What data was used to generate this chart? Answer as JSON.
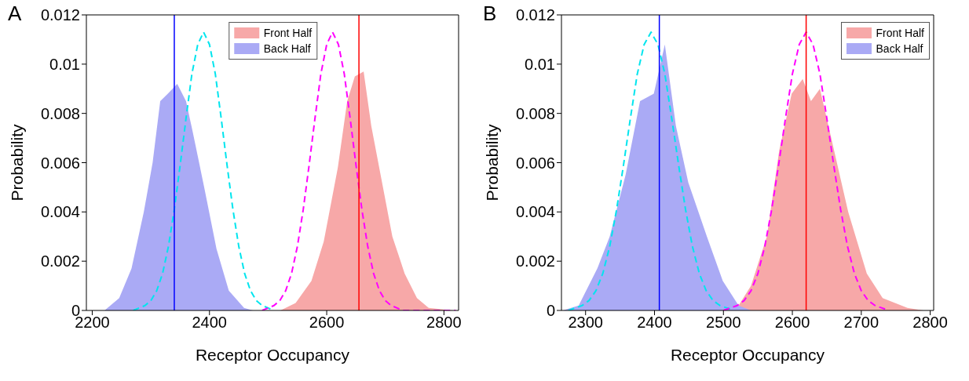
{
  "chart_data": [
    {
      "type": "area",
      "title": "A",
      "xlabel": "Receptor Occupancy",
      "ylabel": "Probability",
      "xlim": [
        2190,
        2825
      ],
      "xticks": [
        2200,
        2400,
        2600,
        2800
      ],
      "ylim": [
        0,
        0.012
      ],
      "yticks": [
        0,
        0.002,
        0.004,
        0.006,
        0.008,
        0.01,
        0.012
      ],
      "grid": false,
      "legend": "top",
      "series": [
        {
          "name": "Front Half",
          "color": "#f7a8a8",
          "x": [
            2521,
            2547,
            2574,
            2595,
            2619,
            2635,
            2648,
            2663,
            2676,
            2692,
            2712,
            2733,
            2754,
            2774,
            2816
          ],
          "values": [
            0,
            0.0003,
            0.0012,
            0.0028,
            0.0058,
            0.0085,
            0.0095,
            0.0097,
            0.0075,
            0.0055,
            0.003,
            0.0015,
            0.0005,
            0.0001,
            0
          ]
        },
        {
          "name": "Back Half",
          "color": "#aaaaf5",
          "x": [
            2221,
            2246,
            2267,
            2288,
            2303,
            2316,
            2329,
            2345,
            2360,
            2371,
            2391,
            2412,
            2433,
            2459,
            2474
          ],
          "values": [
            0,
            0.0005,
            0.0017,
            0.004,
            0.006,
            0.0085,
            0.0088,
            0.0092,
            0.0085,
            0.0073,
            0.005,
            0.0025,
            0.0008,
            0.0001,
            0
          ]
        },
        {
          "type": "line",
          "line_style": "dashed",
          "color": "#00e5ee",
          "x": [
            2270,
            2290,
            2300,
            2310,
            2320,
            2330,
            2340,
            2350,
            2360,
            2370,
            2380,
            2390,
            2400,
            2410,
            2420,
            2430,
            2440,
            2450,
            2460,
            2470,
            2480,
            2490,
            2510
          ],
          "values": [
            0,
            0.0002,
            0.0004,
            0.0008,
            0.0015,
            0.0026,
            0.0041,
            0.0059,
            0.0078,
            0.0096,
            0.0108,
            0.0113,
            0.0108,
            0.0096,
            0.0078,
            0.0059,
            0.0041,
            0.0026,
            0.0015,
            0.0008,
            0.0004,
            0.0002,
            0
          ]
        },
        {
          "type": "line",
          "line_style": "dashed",
          "color": "#ff00ff",
          "x": [
            2490,
            2510,
            2520,
            2530,
            2540,
            2550,
            2560,
            2570,
            2580,
            2590,
            2600,
            2610,
            2620,
            2630,
            2640,
            2650,
            2660,
            2670,
            2680,
            2690,
            2700,
            2710,
            2730,
            2820
          ],
          "values": [
            0,
            0.0002,
            0.0004,
            0.0008,
            0.0015,
            0.0026,
            0.0041,
            0.0059,
            0.0078,
            0.0096,
            0.0108,
            0.0113,
            0.0108,
            0.0096,
            0.0078,
            0.0059,
            0.0041,
            0.0026,
            0.0015,
            0.0008,
            0.0004,
            0.0002,
            0,
            0
          ]
        }
      ],
      "ref_lines": [
        {
          "axis": "x",
          "value": 2340,
          "color": "#0000ff"
        },
        {
          "axis": "x",
          "value": 2655,
          "color": "#ff0000"
        }
      ]
    },
    {
      "type": "area",
      "title": "B",
      "xlabel": "Receptor Occupancy",
      "ylabel": "Probability",
      "xlim": [
        2265,
        2805
      ],
      "xticks": [
        2300,
        2400,
        2500,
        2600,
        2700,
        2800
      ],
      "ylim": [
        0,
        0.012
      ],
      "yticks": [
        0,
        0.002,
        0.004,
        0.006,
        0.008,
        0.01,
        0.012
      ],
      "grid": false,
      "legend": "top right",
      "series": [
        {
          "name": "Front Half",
          "color": "#f7a8a8",
          "x": [
            2495,
            2522,
            2540,
            2563,
            2581,
            2599,
            2615,
            2627,
            2640,
            2658,
            2681,
            2708,
            2731,
            2767,
            2790
          ],
          "values": [
            0,
            0.0002,
            0.001,
            0.003,
            0.0065,
            0.0088,
            0.0094,
            0.0085,
            0.009,
            0.0068,
            0.004,
            0.0015,
            0.0005,
            0.0001,
            0
          ]
        },
        {
          "name": "Back Half",
          "color": "#aaaaf5",
          "x": [
            2267,
            2290,
            2317,
            2335,
            2358,
            2379,
            2399,
            2415,
            2431,
            2449,
            2476,
            2499,
            2522,
            2540
          ],
          "values": [
            0,
            0.0002,
            0.0017,
            0.003,
            0.0055,
            0.0085,
            0.0088,
            0.0108,
            0.0075,
            0.0052,
            0.003,
            0.0012,
            0.0002,
            0
          ]
        },
        {
          "type": "line",
          "line_style": "dashed",
          "color": "#00e5ee",
          "x": [
            2275,
            2295,
            2305,
            2315,
            2325,
            2335,
            2345,
            2355,
            2365,
            2375,
            2385,
            2395,
            2405,
            2415,
            2425,
            2435,
            2445,
            2455,
            2465,
            2475,
            2485,
            2495,
            2515
          ],
          "values": [
            0,
            0.0002,
            0.0004,
            0.0008,
            0.0015,
            0.0026,
            0.0041,
            0.0059,
            0.0078,
            0.0096,
            0.0108,
            0.0113,
            0.0108,
            0.0096,
            0.0078,
            0.0059,
            0.0041,
            0.0026,
            0.0015,
            0.0008,
            0.0004,
            0.0002,
            0
          ]
        },
        {
          "type": "line",
          "line_style": "dashed",
          "color": "#ff00ff",
          "x": [
            2500,
            2520,
            2530,
            2540,
            2550,
            2560,
            2570,
            2580,
            2590,
            2600,
            2610,
            2620,
            2630,
            2640,
            2650,
            2660,
            2670,
            2680,
            2690,
            2700,
            2710,
            2720,
            2740
          ],
          "values": [
            0,
            0.0002,
            0.0004,
            0.0008,
            0.0015,
            0.0026,
            0.0041,
            0.0059,
            0.0078,
            0.0096,
            0.0108,
            0.0113,
            0.0108,
            0.0096,
            0.0078,
            0.0059,
            0.0041,
            0.0026,
            0.0015,
            0.0008,
            0.0004,
            0.0002,
            0
          ]
        }
      ],
      "ref_lines": [
        {
          "axis": "x",
          "value": 2407,
          "color": "#0000ff"
        },
        {
          "axis": "x",
          "value": 2620,
          "color": "#ff0000"
        }
      ]
    }
  ]
}
